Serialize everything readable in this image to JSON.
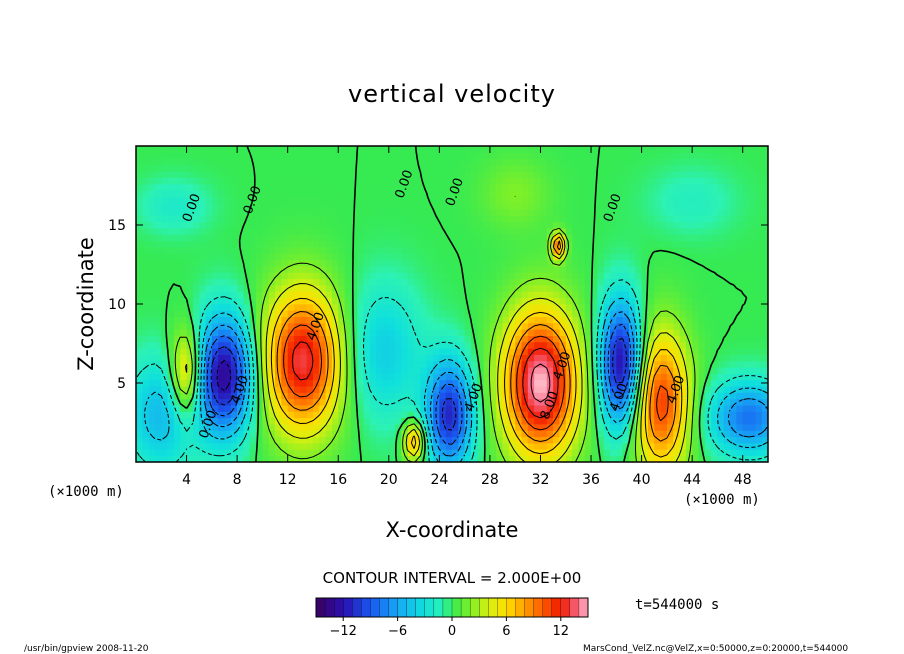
{
  "chart_data": {
    "type": "heatmap",
    "title": "vertical velocity",
    "xlabel": "X-coordinate",
    "ylabel": "Z-coordinate",
    "x_unit_left": "(×1000 m)",
    "x_unit_right": "(×1000 m)",
    "xlim": [
      0,
      50
    ],
    "ylim": [
      0,
      20
    ],
    "xticks": [
      4,
      8,
      12,
      16,
      20,
      24,
      28,
      32,
      36,
      40,
      44,
      48
    ],
    "yticks": [
      5,
      10,
      15
    ],
    "contour_interval_text": "CONTOUR INTERVAL = 2.000E+00",
    "time_text": "t=544000 s",
    "contour_labels": [
      {
        "text": "0.00",
        "x": 4.7,
        "z": 16.0
      },
      {
        "text": "0.00",
        "x": 9.5,
        "z": 16.5
      },
      {
        "text": "0.00",
        "x": 21.5,
        "z": 17.5
      },
      {
        "text": "0.00",
        "x": 25.5,
        "z": 17.0
      },
      {
        "text": "0.00",
        "x": 38.0,
        "z": 16.0
      },
      {
        "text": "0.00",
        "x": 6.0,
        "z": 2.3
      },
      {
        "text": "4.00",
        "x": 14.5,
        "z": 8.5
      },
      {
        "text": "4.00",
        "x": 8.5,
        "z": 4.5
      },
      {
        "text": "4.00",
        "x": 27.0,
        "z": 4.0
      },
      {
        "text": "4.00",
        "x": 34.0,
        "z": 6.0
      },
      {
        "text": "8.00",
        "x": 33.0,
        "z": 3.5
      },
      {
        "text": "4.00",
        "x": 38.5,
        "z": 4.0
      },
      {
        "text": "4.00",
        "x": 43.0,
        "z": 4.5
      }
    ],
    "cells": [
      {
        "x": 4.0,
        "z": 5.5,
        "sx": 0.9,
        "sz": 2.0,
        "amp": 8
      },
      {
        "x": 7.0,
        "z": 5.5,
        "sx": 1.6,
        "sz": 2.6,
        "amp": -13
      },
      {
        "x": 2.0,
        "z": 3.0,
        "sx": 2.0,
        "sz": 2.5,
        "amp": -5
      },
      {
        "x": 13.2,
        "z": 6.4,
        "sx": 2.2,
        "sz": 3.2,
        "amp": 13
      },
      {
        "x": 19.5,
        "z": 7.0,
        "sx": 2.2,
        "sz": 3.0,
        "amp": -4
      },
      {
        "x": 22.0,
        "z": 1.3,
        "sx": 0.6,
        "sz": 0.9,
        "amp": 8
      },
      {
        "x": 24.8,
        "z": 3.0,
        "sx": 1.3,
        "sz": 2.4,
        "amp": -11
      },
      {
        "x": 32.0,
        "z": 5.0,
        "sx": 2.1,
        "sz": 3.3,
        "amp": 15
      },
      {
        "x": 38.4,
        "z": 6.2,
        "sx": 1.2,
        "sz": 2.8,
        "amp": -13
      },
      {
        "x": 41.5,
        "z": 3.8,
        "sx": 1.6,
        "sz": 3.2,
        "amp": 11
      },
      {
        "x": 48.5,
        "z": 2.8,
        "sx": 2.2,
        "sz": 1.6,
        "amp": -8
      },
      {
        "x": 33.4,
        "z": 13.7,
        "sx": 0.4,
        "sz": 0.6,
        "amp": 9
      },
      {
        "x": 3.0,
        "z": 16.2,
        "sx": 2.0,
        "sz": 1.2,
        "amp": -2
      },
      {
        "x": 30.0,
        "z": 17.0,
        "sx": 2.0,
        "sz": 1.6,
        "amp": 2
      },
      {
        "x": 44.0,
        "z": 16.5,
        "sx": 2.5,
        "sz": 1.5,
        "amp": -1.5
      }
    ],
    "colorbar": {
      "min": -15,
      "max": 15,
      "step": 1,
      "ticks": [
        -12,
        -6,
        0,
        6,
        12
      ],
      "tick_labels": [
        "−12",
        "−6",
        "0",
        "6",
        "12"
      ]
    }
  },
  "footer": {
    "left": "/usr/bin/gpview  2008-11-20",
    "right": "MarsCond_VelZ.nc@VelZ,x=0:50000,z=0:20000,t=544000"
  }
}
